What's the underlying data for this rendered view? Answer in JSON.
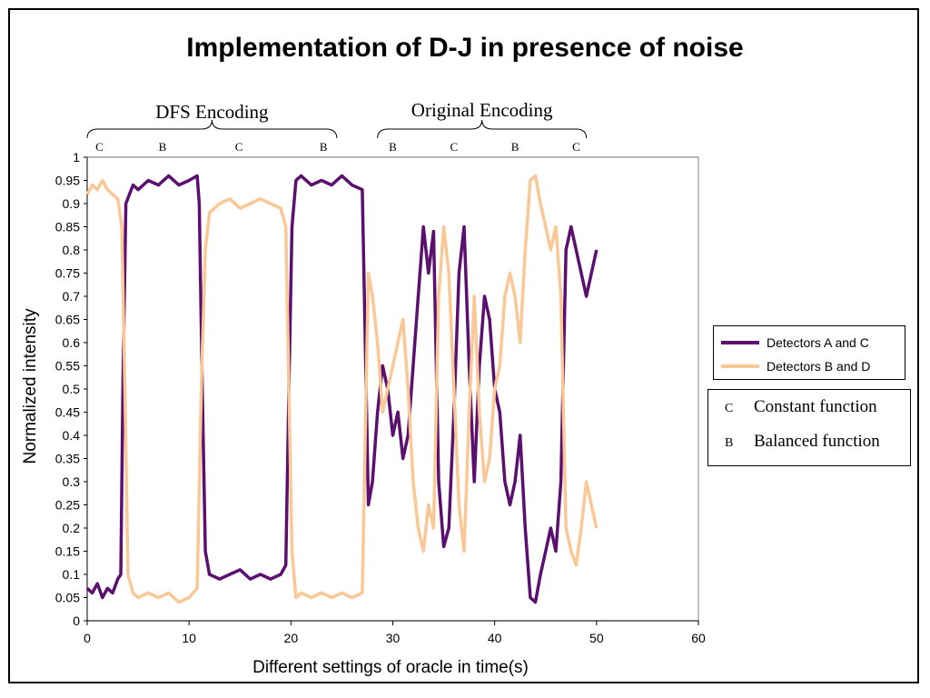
{
  "chart_data": {
    "type": "line",
    "title": "Implementation of D-J in presence of noise",
    "xlabel": "Different settings of oracle in time(s)",
    "ylabel": "Normalized intensity",
    "xlim": [
      0,
      60
    ],
    "ylim": [
      0,
      1
    ],
    "x_ticks": [
      "0",
      "10",
      "20",
      "30",
      "40",
      "50",
      "60"
    ],
    "y_ticks": [
      "0",
      "0.05",
      "0.1",
      "0.15",
      "0.2",
      "0.25",
      "0.3",
      "0.35",
      "0.4",
      "0.45",
      "0.5",
      "0.55",
      "0.6",
      "0.65",
      "0.7",
      "0.75",
      "0.8",
      "0.85",
      "0.9",
      "0.95",
      "1"
    ],
    "grid": "horizontal",
    "legend_position": "right",
    "series": [
      {
        "name": "Detectors A and C",
        "color": "#5b0f6e",
        "points": [
          [
            0,
            0.07
          ],
          [
            0.5,
            0.06
          ],
          [
            1,
            0.08
          ],
          [
            1.5,
            0.05
          ],
          [
            2,
            0.07
          ],
          [
            2.5,
            0.06
          ],
          [
            3,
            0.09
          ],
          [
            3.3,
            0.1
          ],
          [
            3.5,
            0.5
          ],
          [
            3.8,
            0.9
          ],
          [
            4.5,
            0.94
          ],
          [
            5,
            0.93
          ],
          [
            6,
            0.95
          ],
          [
            7,
            0.94
          ],
          [
            8,
            0.96
          ],
          [
            9,
            0.94
          ],
          [
            10,
            0.95
          ],
          [
            10.8,
            0.96
          ],
          [
            11,
            0.9
          ],
          [
            11.3,
            0.5
          ],
          [
            11.6,
            0.15
          ],
          [
            12,
            0.1
          ],
          [
            13,
            0.09
          ],
          [
            14,
            0.1
          ],
          [
            15,
            0.11
          ],
          [
            16,
            0.09
          ],
          [
            17,
            0.1
          ],
          [
            18,
            0.09
          ],
          [
            19,
            0.1
          ],
          [
            19.5,
            0.12
          ],
          [
            19.8,
            0.5
          ],
          [
            20.1,
            0.85
          ],
          [
            20.5,
            0.95
          ],
          [
            21,
            0.96
          ],
          [
            22,
            0.94
          ],
          [
            23,
            0.95
          ],
          [
            24,
            0.94
          ],
          [
            25,
            0.96
          ],
          [
            26,
            0.94
          ],
          [
            27,
            0.93
          ],
          [
            27.3,
            0.6
          ],
          [
            27.6,
            0.25
          ],
          [
            28,
            0.3
          ],
          [
            28.5,
            0.45
          ],
          [
            29,
            0.55
          ],
          [
            29.5,
            0.5
          ],
          [
            30,
            0.4
          ],
          [
            30.5,
            0.45
          ],
          [
            31,
            0.35
          ],
          [
            31.5,
            0.4
          ],
          [
            32,
            0.55
          ],
          [
            32.5,
            0.7
          ],
          [
            33,
            0.85
          ],
          [
            33.5,
            0.75
          ],
          [
            34,
            0.84
          ],
          [
            34.5,
            0.3
          ],
          [
            35,
            0.16
          ],
          [
            35.5,
            0.2
          ],
          [
            36,
            0.45
          ],
          [
            36.5,
            0.75
          ],
          [
            37,
            0.85
          ],
          [
            37.5,
            0.55
          ],
          [
            38,
            0.3
          ],
          [
            38.5,
            0.55
          ],
          [
            39,
            0.7
          ],
          [
            39.5,
            0.65
          ],
          [
            40,
            0.5
          ],
          [
            40.5,
            0.45
          ],
          [
            41,
            0.3
          ],
          [
            41.5,
            0.25
          ],
          [
            42,
            0.3
          ],
          [
            42.5,
            0.4
          ],
          [
            43,
            0.2
          ],
          [
            43.5,
            0.05
          ],
          [
            44,
            0.04
          ],
          [
            44.5,
            0.1
          ],
          [
            45,
            0.15
          ],
          [
            45.5,
            0.2
          ],
          [
            46,
            0.15
          ],
          [
            46.5,
            0.3
          ],
          [
            47,
            0.8
          ],
          [
            47.5,
            0.85
          ],
          [
            48,
            0.8
          ],
          [
            48.5,
            0.75
          ],
          [
            49,
            0.7
          ],
          [
            49.5,
            0.75
          ],
          [
            50,
            0.8
          ]
        ]
      },
      {
        "name": "Detectors B and D",
        "color": "#fac896",
        "points": [
          [
            0,
            0.92
          ],
          [
            0.5,
            0.94
          ],
          [
            1,
            0.93
          ],
          [
            1.5,
            0.95
          ],
          [
            2,
            0.93
          ],
          [
            2.5,
            0.92
          ],
          [
            3,
            0.91
          ],
          [
            3.4,
            0.85
          ],
          [
            3.7,
            0.5
          ],
          [
            4,
            0.1
          ],
          [
            4.5,
            0.06
          ],
          [
            5,
            0.05
          ],
          [
            6,
            0.06
          ],
          [
            7,
            0.05
          ],
          [
            8,
            0.06
          ],
          [
            9,
            0.04
          ],
          [
            10,
            0.05
          ],
          [
            10.8,
            0.07
          ],
          [
            11.2,
            0.5
          ],
          [
            11.6,
            0.8
          ],
          [
            12,
            0.88
          ],
          [
            13,
            0.9
          ],
          [
            14,
            0.91
          ],
          [
            15,
            0.89
          ],
          [
            16,
            0.9
          ],
          [
            17,
            0.91
          ],
          [
            18,
            0.9
          ],
          [
            19,
            0.89
          ],
          [
            19.5,
            0.85
          ],
          [
            19.8,
            0.5
          ],
          [
            20.1,
            0.15
          ],
          [
            20.5,
            0.05
          ],
          [
            21,
            0.06
          ],
          [
            22,
            0.05
          ],
          [
            23,
            0.06
          ],
          [
            24,
            0.05
          ],
          [
            25,
            0.06
          ],
          [
            26,
            0.05
          ],
          [
            27,
            0.06
          ],
          [
            27.3,
            0.4
          ],
          [
            27.6,
            0.75
          ],
          [
            28,
            0.7
          ],
          [
            28.5,
            0.6
          ],
          [
            29,
            0.45
          ],
          [
            29.5,
            0.5
          ],
          [
            30,
            0.55
          ],
          [
            30.5,
            0.6
          ],
          [
            31,
            0.65
          ],
          [
            31.5,
            0.5
          ],
          [
            32,
            0.3
          ],
          [
            32.5,
            0.2
          ],
          [
            33,
            0.15
          ],
          [
            33.5,
            0.25
          ],
          [
            34,
            0.2
          ],
          [
            34.5,
            0.7
          ],
          [
            35,
            0.85
          ],
          [
            35.5,
            0.75
          ],
          [
            36,
            0.5
          ],
          [
            36.5,
            0.25
          ],
          [
            37,
            0.15
          ],
          [
            37.5,
            0.45
          ],
          [
            38,
            0.7
          ],
          [
            38.5,
            0.45
          ],
          [
            39,
            0.3
          ],
          [
            39.5,
            0.35
          ],
          [
            40,
            0.5
          ],
          [
            40.5,
            0.55
          ],
          [
            41,
            0.7
          ],
          [
            41.5,
            0.75
          ],
          [
            42,
            0.7
          ],
          [
            42.5,
            0.6
          ],
          [
            43,
            0.8
          ],
          [
            43.5,
            0.95
          ],
          [
            44,
            0.96
          ],
          [
            44.5,
            0.9
          ],
          [
            45,
            0.85
          ],
          [
            45.5,
            0.8
          ],
          [
            46,
            0.85
          ],
          [
            46.5,
            0.7
          ],
          [
            47,
            0.2
          ],
          [
            47.5,
            0.15
          ],
          [
            48,
            0.12
          ],
          [
            48.5,
            0.2
          ],
          [
            49,
            0.3
          ],
          [
            49.5,
            0.25
          ],
          [
            50,
            0.2
          ]
        ]
      }
    ],
    "annotations": {
      "groups": [
        {
          "label": "DFS Encoding",
          "x_start": 0,
          "x_end": 24.5
        },
        {
          "label": "Original Encoding",
          "x_start": 28.5,
          "x_end": 49
        }
      ],
      "letters": [
        {
          "label": "C",
          "x": 1.2
        },
        {
          "label": "B",
          "x": 7.4
        },
        {
          "label": "C",
          "x": 14.9
        },
        {
          "label": "B",
          "x": 23.2
        },
        {
          "label": "B",
          "x": 30.0
        },
        {
          "label": "C",
          "x": 36.0
        },
        {
          "label": "B",
          "x": 42.0
        },
        {
          "label": "C",
          "x": 48.0
        }
      ]
    }
  },
  "key": {
    "items": [
      {
        "letter": "C",
        "text": "Constant function"
      },
      {
        "letter": "B",
        "text": "Balanced function"
      }
    ]
  }
}
